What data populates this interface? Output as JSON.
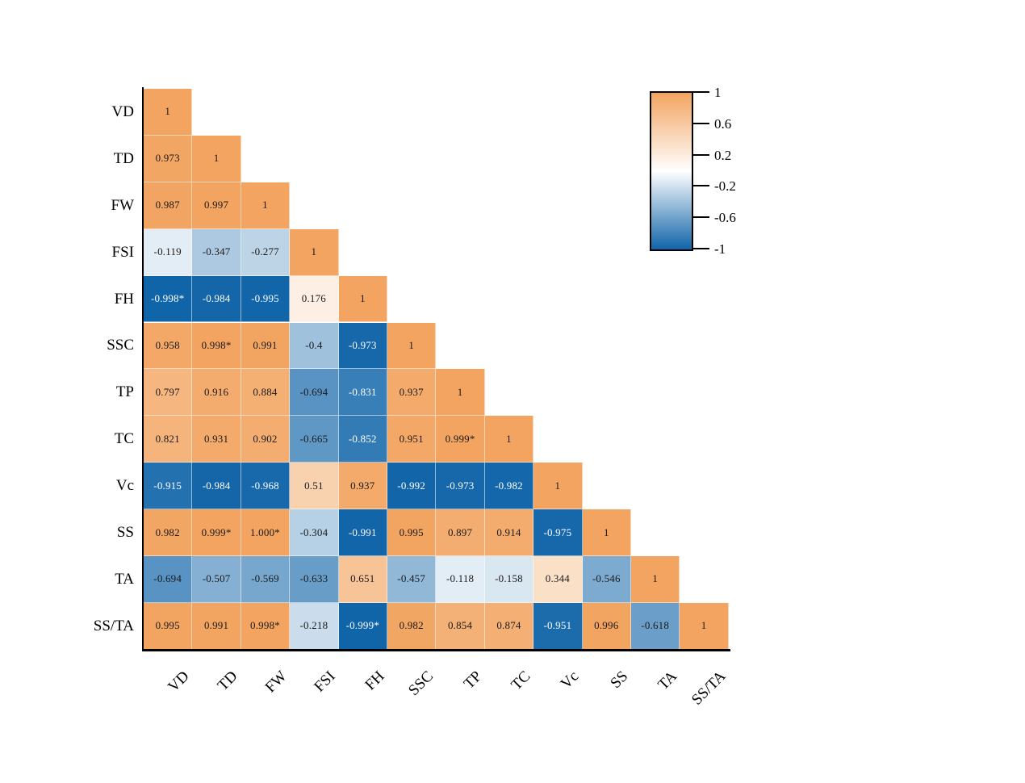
{
  "figure": {
    "background": "#ffffff"
  },
  "chart_data": {
    "type": "heatmap",
    "subtype": "lower-triangular correlation matrix",
    "grid": false,
    "legend_position": "upper-right colorbar",
    "categories": [
      "VD",
      "TD",
      "FW",
      "FSI",
      "FH",
      "SSC",
      "TP",
      "TC",
      "Vc",
      "SS",
      "TA",
      "SS/TA"
    ],
    "rows": [
      {
        "label": "VD",
        "values": [
          "1"
        ]
      },
      {
        "label": "TD",
        "values": [
          "0.973",
          "1"
        ]
      },
      {
        "label": "FW",
        "values": [
          "0.987",
          "0.997",
          "1"
        ]
      },
      {
        "label": "FSI",
        "values": [
          "-0.119",
          "-0.347",
          "-0.277",
          "1"
        ]
      },
      {
        "label": "FH",
        "values": [
          "-0.998*",
          "-0.984",
          "-0.995",
          "0.176",
          "1"
        ]
      },
      {
        "label": "SSC",
        "values": [
          "0.958",
          "0.998*",
          "0.991",
          "-0.4",
          "-0.973",
          "1"
        ]
      },
      {
        "label": "TP",
        "values": [
          "0.797",
          "0.916",
          "0.884",
          "-0.694",
          "-0.831",
          "0.937",
          "1"
        ]
      },
      {
        "label": "TC",
        "values": [
          "0.821",
          "0.931",
          "0.902",
          "-0.665",
          "-0.852",
          "0.951",
          "0.999*",
          "1"
        ]
      },
      {
        "label": "Vc",
        "values": [
          "-0.915",
          "-0.984",
          "-0.968",
          "0.51",
          "0.937",
          "-0.992",
          "-0.973",
          "-0.982",
          "1"
        ]
      },
      {
        "label": "SS",
        "values": [
          "0.982",
          "0.999*",
          "1.000*",
          "-0.304",
          "-0.991",
          "0.995",
          "0.897",
          "0.914",
          "-0.975",
          "1"
        ]
      },
      {
        "label": "TA",
        "values": [
          "-0.694",
          "-0.507",
          "-0.569",
          "-0.633",
          "0.651",
          "-0.457",
          "-0.118",
          "-0.158",
          "0.344",
          "-0.546",
          "1"
        ]
      },
      {
        "label": "SS/TA",
        "values": [
          "0.995",
          "0.991",
          "0.998*",
          "-0.218",
          "-0.999*",
          "0.982",
          "0.854",
          "0.874",
          "-0.951",
          "0.996",
          "-0.618",
          "1"
        ]
      }
    ],
    "colorbar": {
      "tick_labels": [
        "1",
        "0.6",
        "0.2",
        "-0.2",
        "-0.6",
        "-1"
      ],
      "tick_values": [
        1,
        0.6,
        0.2,
        -0.2,
        -0.6,
        -1
      ],
      "range": [
        -1,
        1
      ],
      "color_positive": "#F2A460",
      "color_zero": "#FFFFFF",
      "color_negative": "#1064A8"
    },
    "value_text_color_dark": "#1a1a1a",
    "value_text_color_light": "#ffffff",
    "axis_color": "#000000"
  }
}
